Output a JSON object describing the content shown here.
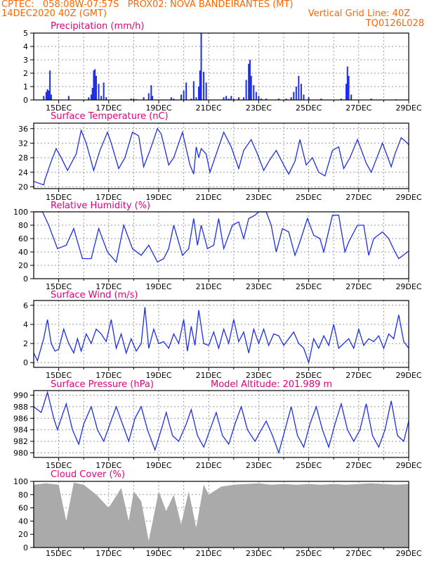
{
  "colors": {
    "header": "#ff6600",
    "title": "#e0007f",
    "line": "#1e2ee8",
    "bar": "#1e2ee8",
    "cloud": "#aaaaaa",
    "grid": "#999999",
    "axis": "#000000"
  },
  "header": {
    "line1": "CPTEC:   058:08W-07:57S   PROX02: NOVA BANDEIRANTES (MT)",
    "line2_left": "14DEC2020 40Z (GMT)",
    "line2_right": "Vertical Grid Line: 40Z",
    "line3_right": "TQ0126L028"
  },
  "x_tick_labels": [
    "15DEC",
    "17DEC",
    "19DEC",
    "21DEC",
    "23DEC",
    "25DEC",
    "27DEC",
    "29DEC"
  ],
  "panels": {
    "precip": {
      "title": "Precipitation (mm/h)",
      "ylim": [
        0,
        5
      ],
      "ticks": [
        "0",
        "1",
        "2",
        "3",
        "4",
        "5"
      ]
    },
    "temp": {
      "title": "Surface Temperature (nC)",
      "ylim": [
        19.5,
        37.5
      ],
      "ticks": [
        "20",
        "24",
        "28",
        "32",
        "36"
      ]
    },
    "rh": {
      "title": "Relative Humidity (%)",
      "ylim": [
        0,
        100
      ],
      "ticks": [
        "0",
        "20",
        "40",
        "60",
        "80",
        "100"
      ]
    },
    "wind": {
      "title": "Surface Wind (m/s)",
      "ylim": [
        -0.5,
        6.5
      ],
      "ticks": [
        "0",
        "2",
        "4",
        "6"
      ]
    },
    "pres": {
      "title": "Surface Pressure (hPa)",
      "extra": "Model Altitude: 201.989 m",
      "ylim": [
        979.2,
        990.8
      ],
      "ticks": [
        "980",
        "982",
        "984",
        "986",
        "988",
        "990"
      ]
    },
    "cloud": {
      "title": "Cloud Cover (%)",
      "ylim": [
        0,
        100
      ],
      "ticks": [
        "0",
        "20",
        "40",
        "60",
        "80",
        "100"
      ]
    }
  },
  "chart_data": [
    {
      "type": "bar",
      "title": "Precipitation (mm/h)",
      "xlim": [
        14,
        29
      ],
      "ylim": [
        0,
        5
      ],
      "x": [
        14.4,
        14.5,
        14.55,
        14.6,
        14.65,
        14.7,
        15.4,
        16.2,
        16.3,
        16.35,
        16.4,
        16.45,
        16.5,
        16.6,
        16.7,
        16.8,
        16.9,
        17.9,
        18.0,
        18.1,
        18.4,
        18.6,
        18.7,
        18.75,
        19.5,
        19.6,
        19.9,
        20.0,
        20.1,
        20.3,
        20.4,
        20.5,
        20.6,
        20.65,
        20.7,
        20.8,
        20.9,
        21.6,
        21.7,
        21.8,
        21.9,
        22.0,
        22.2,
        22.4,
        22.5,
        22.6,
        22.65,
        22.7,
        22.8,
        22.9,
        23.0,
        23.1,
        23.3,
        23.8,
        24.1,
        24.3,
        24.4,
        24.5,
        24.6,
        24.7,
        24.8,
        25.0,
        25.5,
        26.3,
        26.5,
        26.55,
        26.6,
        26.7,
        27.5,
        28.5
      ],
      "values": [
        0.3,
        0.6,
        0.8,
        0.7,
        2.2,
        0.4,
        0.3,
        0.2,
        0.4,
        0.9,
        2.2,
        2.3,
        1.8,
        1.2,
        0.3,
        1.3,
        0.2,
        0.1,
        0.1,
        0.05,
        0.2,
        0.5,
        1.1,
        0.3,
        0.2,
        0.1,
        0.4,
        0.7,
        1.3,
        0.1,
        1.4,
        0.2,
        1.0,
        2.2,
        5.0,
        2.1,
        1.3,
        0.2,
        0.3,
        0.1,
        0.3,
        0.1,
        0.2,
        0.2,
        1.5,
        2.7,
        3.0,
        1.8,
        1.1,
        0.6,
        0.3,
        0.1,
        0.1,
        0.1,
        0.1,
        0.2,
        0.6,
        1.0,
        1.8,
        1.2,
        0.4,
        0.2,
        0.1,
        0.1,
        1.2,
        2.5,
        1.8,
        0.4,
        0.1,
        0.05
      ]
    },
    {
      "type": "line",
      "title": "Surface Temperature (nC)",
      "xlim": [
        14,
        29
      ],
      "ylim": [
        19.5,
        37.5
      ],
      "x": [
        14.0,
        14.4,
        14.45,
        14.7,
        14.9,
        15.1,
        15.35,
        15.7,
        15.9,
        16.1,
        16.4,
        16.65,
        16.95,
        17.1,
        17.4,
        17.65,
        17.95,
        18.2,
        18.4,
        18.65,
        18.95,
        19.1,
        19.4,
        19.6,
        19.95,
        20.25,
        20.4,
        20.5,
        20.6,
        20.7,
        20.9,
        21.05,
        21.3,
        21.6,
        21.9,
        22.2,
        22.4,
        22.7,
        22.95,
        23.2,
        23.45,
        23.7,
        24.0,
        24.2,
        24.45,
        24.65,
        24.9,
        25.15,
        25.4,
        25.65,
        25.95,
        26.2,
        26.4,
        26.65,
        26.95,
        27.3,
        27.5,
        27.7,
        27.95,
        28.3,
        28.45,
        28.7,
        28.95,
        29.0
      ],
      "values": [
        21.5,
        20.5,
        22.0,
        27.0,
        30.5,
        28.0,
        24.5,
        29.0,
        35.5,
        32.0,
        24.5,
        30.0,
        35.0,
        32.0,
        25.0,
        28.0,
        35.0,
        34.0,
        25.5,
        30.0,
        36.0,
        34.5,
        26.0,
        28.0,
        35.0,
        26.0,
        23.5,
        31.0,
        28.0,
        30.5,
        29.0,
        24.0,
        29.0,
        35.0,
        31.0,
        25.0,
        30.0,
        33.0,
        29.0,
        24.5,
        27.5,
        30.0,
        26.0,
        23.5,
        27.0,
        33.0,
        26.0,
        28.0,
        24.0,
        23.0,
        30.0,
        31.0,
        25.0,
        28.0,
        33.0,
        26.5,
        24.0,
        27.5,
        32.0,
        25.5,
        29.0,
        33.5,
        32.0,
        31.5
      ]
    },
    {
      "type": "line",
      "title": "Relative Humidity (%)",
      "xlim": [
        14,
        29
      ],
      "ylim": [
        0,
        100
      ],
      "x": [
        14.0,
        14.35,
        14.6,
        14.95,
        15.3,
        15.6,
        15.95,
        16.3,
        16.6,
        16.95,
        17.3,
        17.6,
        17.95,
        18.3,
        18.6,
        18.95,
        19.2,
        19.4,
        19.6,
        19.95,
        20.2,
        20.4,
        20.55,
        20.7,
        20.95,
        21.2,
        21.4,
        21.6,
        21.95,
        22.2,
        22.4,
        22.6,
        22.85,
        23.0,
        23.3,
        23.5,
        23.7,
        23.95,
        24.2,
        24.45,
        24.6,
        24.95,
        25.2,
        25.45,
        25.6,
        25.95,
        26.2,
        26.45,
        26.6,
        26.95,
        27.2,
        27.4,
        27.6,
        27.95,
        28.2,
        28.45,
        28.6,
        28.95,
        29.0
      ],
      "values": [
        100,
        100,
        80,
        45,
        50,
        75,
        30,
        30,
        75,
        40,
        25,
        80,
        45,
        35,
        50,
        25,
        30,
        45,
        80,
        35,
        45,
        90,
        50,
        80,
        45,
        50,
        90,
        45,
        80,
        85,
        60,
        90,
        95,
        100,
        100,
        80,
        40,
        75,
        70,
        35,
        50,
        90,
        65,
        60,
        40,
        95,
        95,
        40,
        55,
        80,
        80,
        35,
        60,
        70,
        60,
        40,
        30,
        40,
        41
      ]
    },
    {
      "type": "line",
      "title": "Surface Wind (m/s)",
      "xlim": [
        14,
        29
      ],
      "ylim": [
        -0.5,
        6.5
      ],
      "x": [
        14.0,
        14.15,
        14.4,
        14.55,
        14.7,
        14.85,
        15.0,
        15.2,
        15.4,
        15.6,
        15.75,
        15.9,
        16.1,
        16.3,
        16.5,
        16.7,
        16.9,
        17.1,
        17.3,
        17.5,
        17.7,
        17.9,
        18.1,
        18.3,
        18.45,
        18.6,
        18.8,
        19.0,
        19.2,
        19.4,
        19.6,
        19.8,
        20.0,
        20.15,
        20.3,
        20.45,
        20.6,
        20.8,
        21.0,
        21.2,
        21.4,
        21.6,
        21.8,
        22.0,
        22.2,
        22.4,
        22.6,
        22.8,
        23.0,
        23.2,
        23.4,
        23.6,
        23.8,
        24.0,
        24.2,
        24.4,
        24.6,
        24.8,
        25.0,
        25.2,
        25.4,
        25.6,
        25.8,
        26.0,
        26.2,
        26.4,
        26.6,
        26.8,
        27.0,
        27.2,
        27.4,
        27.6,
        27.8,
        28.0,
        28.2,
        28.4,
        28.6,
        28.8,
        29.0
      ],
      "values": [
        1.0,
        0.2,
        2.5,
        4.5,
        2.0,
        1.2,
        1.4,
        3.5,
        2.0,
        1.0,
        2.5,
        1.2,
        3.0,
        2.0,
        3.5,
        3.0,
        2.2,
        4.5,
        1.5,
        3.0,
        1.0,
        2.5,
        1.2,
        2.0,
        5.8,
        1.5,
        3.5,
        2.0,
        2.2,
        1.5,
        3.0,
        2.0,
        4.5,
        1.2,
        3.8,
        1.8,
        5.5,
        2.0,
        1.8,
        3.2,
        1.5,
        3.5,
        2.0,
        4.5,
        2.2,
        3.2,
        1.0,
        3.5,
        2.0,
        3.5,
        1.8,
        3.0,
        2.8,
        1.8,
        2.5,
        3.2,
        2.0,
        1.5,
        0.0,
        2.5,
        1.5,
        2.8,
        1.8,
        4.0,
        1.5,
        2.0,
        2.5,
        1.5,
        3.5,
        1.8,
        2.5,
        2.2,
        2.8,
        1.5,
        3.0,
        2.5,
        5.0,
        2.2,
        1.5
      ]
    },
    {
      "type": "line",
      "title": "Surface Pressure (hPa)",
      "xlim": [
        14,
        29
      ],
      "ylim": [
        979.2,
        990.8
      ],
      "x": [
        14.0,
        14.3,
        14.55,
        14.8,
        14.95,
        15.1,
        15.3,
        15.55,
        15.8,
        16.0,
        16.3,
        16.55,
        16.8,
        17.05,
        17.3,
        17.55,
        17.8,
        18.05,
        18.3,
        18.55,
        18.85,
        19.1,
        19.3,
        19.55,
        19.8,
        20.1,
        20.3,
        20.55,
        20.8,
        21.05,
        21.3,
        21.55,
        21.8,
        22.05,
        22.3,
        22.55,
        22.85,
        23.1,
        23.3,
        23.55,
        23.8,
        24.05,
        24.3,
        24.55,
        24.8,
        25.05,
        25.3,
        25.55,
        25.8,
        26.05,
        26.3,
        26.55,
        26.8,
        27.05,
        27.3,
        27.55,
        27.8,
        28.05,
        28.3,
        28.55,
        28.8,
        29.0
      ],
      "values": [
        988,
        987,
        990.5,
        986,
        984,
        986,
        988.5,
        984,
        981.5,
        985,
        988,
        984,
        982,
        985,
        988,
        985,
        982,
        986,
        988,
        984,
        980.5,
        984,
        987,
        983,
        982,
        985,
        987.5,
        983,
        981,
        984,
        987,
        983,
        981.5,
        985,
        988,
        984,
        982,
        984,
        985.5,
        983,
        980,
        984,
        988,
        983,
        981,
        985,
        988,
        984,
        981,
        985,
        988.5,
        984,
        982,
        984,
        988.5,
        983,
        981,
        984,
        989,
        983,
        982,
        985.5
      ]
    },
    {
      "type": "bar",
      "title": "Cloud Cover (%)",
      "xlim": [
        14,
        29
      ],
      "ylim": [
        0,
        100
      ],
      "x": [
        14.0,
        14.5,
        15.0,
        15.3,
        15.6,
        16.0,
        16.5,
        17.0,
        17.5,
        17.8,
        18.0,
        18.3,
        18.6,
        19.0,
        19.3,
        19.6,
        19.9,
        20.2,
        20.5,
        20.8,
        21.0,
        21.5,
        22.0,
        22.5,
        23.0,
        23.5,
        24.0,
        24.5,
        25.0,
        25.5,
        26.0,
        26.5,
        27.0,
        27.5,
        28.0,
        28.5,
        29.0
      ],
      "values": [
        95,
        97,
        95,
        40,
        98,
        95,
        80,
        60,
        90,
        40,
        85,
        70,
        10,
        85,
        55,
        80,
        35,
        85,
        30,
        95,
        80,
        92,
        95,
        96,
        97,
        95,
        96,
        95,
        96,
        95,
        96,
        95,
        96,
        97,
        96,
        95,
        96
      ]
    }
  ]
}
